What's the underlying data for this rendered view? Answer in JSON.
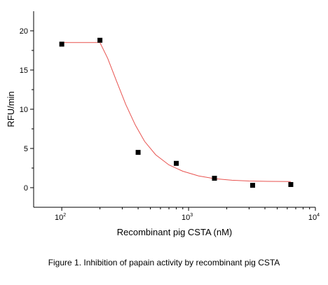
{
  "chart_data": {
    "type": "scatter",
    "x_scale": "log",
    "xlabel": "Recombinant pig CSTA (nM)",
    "ylabel": "RFU/min",
    "xlim": [
      60,
      10000
    ],
    "ylim": [
      -2.5,
      22.5
    ],
    "x_ticks": [
      {
        "value": 100,
        "base": "10",
        "exp": "2"
      },
      {
        "value": 1000,
        "base": "10",
        "exp": "3"
      },
      {
        "value": 10000,
        "base": "10",
        "exp": "4"
      }
    ],
    "y_ticks": [
      {
        "value": 0,
        "label": "0"
      },
      {
        "value": 5,
        "label": "5"
      },
      {
        "value": 10,
        "label": "10"
      },
      {
        "value": 15,
        "label": "15"
      },
      {
        "value": 20,
        "label": "20"
      }
    ],
    "series": [
      {
        "kind": "points",
        "x": [
          100,
          200,
          400,
          800,
          1600,
          3200,
          6400
        ],
        "y": [
          18.3,
          18.8,
          4.5,
          3.1,
          1.2,
          0.3,
          0.4
        ],
        "color": "#000000"
      },
      {
        "kind": "fit",
        "x": [
          100,
          200,
          230,
          270,
          320,
          380,
          450,
          550,
          700,
          900,
          1200,
          1600,
          2200,
          3000,
          4200,
          6400
        ],
        "y": [
          18.5,
          18.5,
          16.5,
          13.6,
          10.6,
          8.0,
          5.9,
          4.2,
          2.9,
          2.1,
          1.5,
          1.15,
          0.95,
          0.85,
          0.8,
          0.78
        ],
        "color": "#e8524f"
      }
    ],
    "grid": false
  },
  "caption": "Figure 1. Inhibition of papain activity by recombinant pig CSTA"
}
